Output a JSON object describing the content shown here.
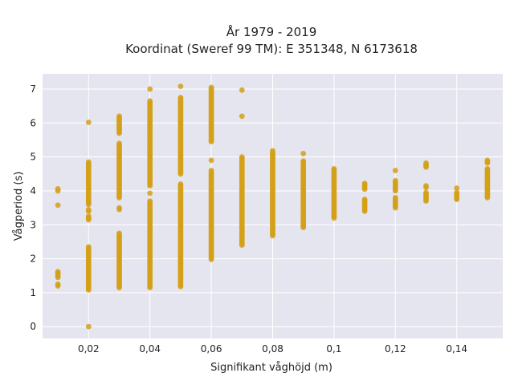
{
  "chart_data": {
    "type": "scatter",
    "title_lines": [
      "År 1979 - 2019",
      "Koordinat (Sweref 99 TM): E 351348, N 6173618"
    ],
    "xlabel": "Signifikant våghöjd (m)",
    "ylabel": "Vågperiod (s)",
    "xlim": [
      0.005,
      0.155
    ],
    "ylim": [
      -0.35,
      7.45
    ],
    "x_ticks": [
      {
        "value": 0.02,
        "label": "0,02"
      },
      {
        "value": 0.04,
        "label": "0,04"
      },
      {
        "value": 0.06,
        "label": "0,06"
      },
      {
        "value": 0.08,
        "label": "0,08"
      },
      {
        "value": 0.1,
        "label": "0,1"
      },
      {
        "value": 0.12,
        "label": "0,12"
      },
      {
        "value": 0.14,
        "label": "0,14"
      }
    ],
    "y_ticks": [
      {
        "value": 0,
        "label": "0"
      },
      {
        "value": 1,
        "label": "1"
      },
      {
        "value": 2,
        "label": "2"
      },
      {
        "value": 3,
        "label": "3"
      },
      {
        "value": 4,
        "label": "4"
      },
      {
        "value": 5,
        "label": "5"
      },
      {
        "value": 6,
        "label": "6"
      },
      {
        "value": 7,
        "label": "7"
      }
    ],
    "grid": true,
    "marker_color": "#D4A017",
    "plot_background": "#E5E5F0",
    "points_by_x": [
      {
        "x": 0.01,
        "clusters": [
          [
            1.2,
            1.25
          ],
          [
            1.45,
            1.62
          ],
          [
            3.58,
            3.58
          ],
          [
            4.0,
            4.06
          ]
        ]
      },
      {
        "x": 0.02,
        "clusters": [
          [
            0.0,
            0.0
          ],
          [
            1.08,
            2.35
          ],
          [
            3.15,
            3.25
          ],
          [
            3.4,
            3.45
          ],
          [
            3.6,
            4.85
          ],
          [
            6.02,
            6.02
          ]
        ]
      },
      {
        "x": 0.03,
        "clusters": [
          [
            1.15,
            2.75
          ],
          [
            3.45,
            3.5
          ],
          [
            3.8,
            5.4
          ],
          [
            5.7,
            6.2
          ]
        ]
      },
      {
        "x": 0.04,
        "clusters": [
          [
            1.15,
            3.7
          ],
          [
            3.93,
            3.93
          ],
          [
            4.15,
            6.65
          ],
          [
            7.0,
            7.0
          ]
        ]
      },
      {
        "x": 0.05,
        "clusters": [
          [
            1.18,
            4.2
          ],
          [
            4.5,
            6.75
          ],
          [
            7.08,
            7.08
          ]
        ]
      },
      {
        "x": 0.06,
        "clusters": [
          [
            1.98,
            4.6
          ],
          [
            4.9,
            4.9
          ],
          [
            5.45,
            7.05
          ]
        ]
      },
      {
        "x": 0.07,
        "clusters": [
          [
            2.4,
            5.0
          ],
          [
            6.2,
            6.2
          ],
          [
            6.97,
            6.97
          ]
        ]
      },
      {
        "x": 0.08,
        "clusters": [
          [
            2.68,
            5.18
          ]
        ]
      },
      {
        "x": 0.09,
        "clusters": [
          [
            2.92,
            4.88
          ],
          [
            5.1,
            5.1
          ]
        ]
      },
      {
        "x": 0.1,
        "clusters": [
          [
            3.2,
            4.65
          ]
        ]
      },
      {
        "x": 0.11,
        "clusters": [
          [
            3.4,
            3.75
          ],
          [
            4.05,
            4.22
          ]
        ]
      },
      {
        "x": 0.12,
        "clusters": [
          [
            3.5,
            3.8
          ],
          [
            4.0,
            4.3
          ],
          [
            4.6,
            4.6
          ]
        ]
      },
      {
        "x": 0.13,
        "clusters": [
          [
            3.7,
            3.95
          ],
          [
            4.1,
            4.15
          ],
          [
            4.7,
            4.82
          ]
        ]
      },
      {
        "x": 0.14,
        "clusters": [
          [
            3.75,
            3.95
          ],
          [
            4.08,
            4.08
          ]
        ]
      },
      {
        "x": 0.15,
        "clusters": [
          [
            3.8,
            4.65
          ],
          [
            4.82,
            4.9
          ]
        ]
      }
    ]
  }
}
